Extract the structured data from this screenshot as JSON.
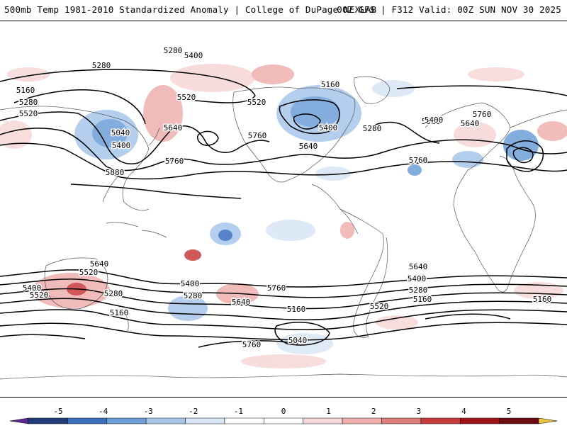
{
  "header": {
    "title_left": "500mb Temp 1981-2010 Standardized Anomaly | College of DuPage NEXLAB",
    "title_right": "00Z GFS | F312 Valid: 00Z SUN NOV 30 2025"
  },
  "contour_labels": [
    "5280",
    "5400",
    "5280",
    "5160",
    "5280",
    "5520",
    "5040",
    "5400",
    "5640",
    "5760",
    "5880",
    "5520",
    "5160",
    "5520",
    "5400",
    "5280",
    "5640",
    "5760",
    "5520",
    "5400",
    "5280",
    "5640",
    "5760",
    "5760",
    "5640",
    "5520",
    "5400",
    "5280",
    "5520",
    "5400",
    "5280",
    "5640",
    "5760",
    "5160",
    "5040",
    "5160",
    "5760",
    "5640",
    "5400",
    "5280",
    "5520",
    "5160",
    "5160"
  ],
  "colorbar": {
    "ticks": [
      "-5",
      "-4",
      "-3",
      "-2",
      "-1",
      "0",
      "1",
      "2",
      "3",
      "4",
      "5"
    ],
    "colors": [
      "#5a2a96",
      "#233d7a",
      "#3a6fbf",
      "#6e9fd8",
      "#a8c6ea",
      "#d8e6f5",
      "#ffffff",
      "#ffffff",
      "#f7d7d7",
      "#efb0ae",
      "#df7d7c",
      "#c93a3b",
      "#9e1218",
      "#6e0a12",
      "#e8c53a"
    ]
  }
}
